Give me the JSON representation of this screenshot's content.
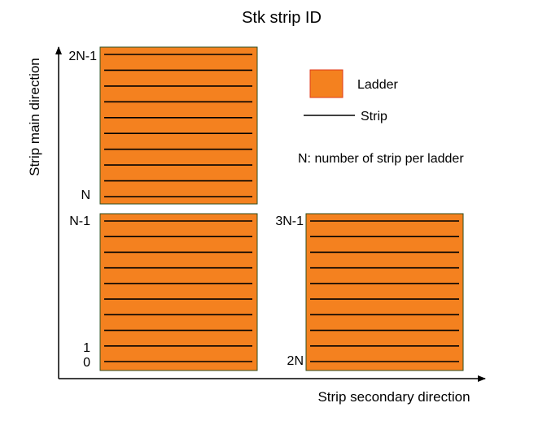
{
  "title": "Stk strip ID",
  "axes": {
    "x_label": "Strip secondary direction",
    "y_label": "Strip main direction"
  },
  "legend": {
    "ladder_label": "Ladder",
    "strip_label": "Strip",
    "note": "N: number of strip per ladder"
  },
  "ladders": {
    "top_left": {
      "top_label": "2N-1",
      "bottom_label": "N"
    },
    "bottom_left": {
      "top_label": "N-1",
      "label_1": "1",
      "label_0": "0"
    },
    "bottom_right": {
      "top_label": "3N-1",
      "bottom_label": "2N"
    }
  },
  "colors": {
    "ladder_fill": "#f4811f",
    "ladder_border": "#2e4d1e",
    "legend_border": "#e03a1a",
    "strip": "#000000",
    "axis": "#000000"
  }
}
